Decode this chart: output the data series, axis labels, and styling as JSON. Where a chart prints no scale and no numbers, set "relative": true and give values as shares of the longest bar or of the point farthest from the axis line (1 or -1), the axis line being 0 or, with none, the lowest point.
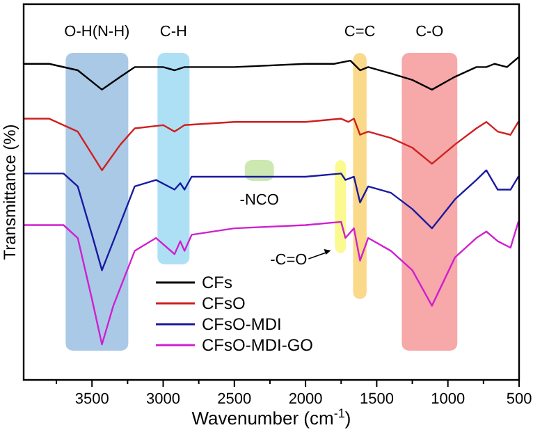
{
  "chart_data": {
    "type": "line",
    "relative": true,
    "xlabel": "Wavenumber (cm$^{-1}$)",
    "ylabel": "Transmittance (%)",
    "xlim": [
      3980,
      500
    ],
    "xticks": [
      {
        "value": 3750,
        "label": null
      },
      3500,
      {
        "value": 3250,
        "label": null
      },
      3000,
      {
        "value": 2750,
        "label": null
      },
      2500,
      {
        "value": 2250,
        "label": null
      },
      2000,
      {
        "value": 1750,
        "label": null
      },
      1500,
      {
        "value": 1250,
        "label": null
      },
      1000,
      {
        "value": 750,
        "label": null
      },
      500
    ],
    "tick_labels": "x",
    "legend": "bottom",
    "grid": false,
    "line_style": "solid",
    "series": [
      {
        "name": "CFs",
        "color": "#000000",
        "x": [
          3980,
          3800,
          3600,
          3430,
          3300,
          3200,
          3000,
          2920,
          2850,
          2500,
          2000,
          1800,
          1685,
          1617,
          1560,
          1400,
          1250,
          1112,
          950,
          800,
          730,
          673,
          585,
          505
        ],
        "values": [
          0.98,
          0.98,
          0.96,
          0.9,
          0.94,
          0.97,
          0.97,
          0.96,
          0.97,
          0.97,
          0.98,
          0.98,
          0.99,
          0.96,
          0.97,
          0.95,
          0.93,
          0.9,
          0.94,
          0.97,
          0.97,
          0.98,
          0.97,
          1.0
        ]
      },
      {
        "name": "CFsO",
        "color": "#d02020",
        "x": [
          3980,
          3800,
          3600,
          3430,
          3300,
          3200,
          3000,
          2920,
          2850,
          2500,
          2000,
          1750,
          1700,
          1660,
          1617,
          1560,
          1400,
          1250,
          1112,
          950,
          800,
          730,
          650,
          560,
          505
        ],
        "values": [
          0.81,
          0.81,
          0.77,
          0.65,
          0.73,
          0.78,
          0.79,
          0.77,
          0.79,
          0.8,
          0.8,
          0.81,
          0.8,
          0.81,
          0.76,
          0.77,
          0.75,
          0.72,
          0.67,
          0.73,
          0.78,
          0.8,
          0.77,
          0.76,
          0.8
        ]
      },
      {
        "name": "CFsO-MDI",
        "color": "#1a1aa0",
        "x": [
          3980,
          3700,
          3600,
          3500,
          3430,
          3350,
          3200,
          3050,
          2920,
          2880,
          2850,
          2800,
          2500,
          2300,
          2000,
          1750,
          1720,
          1660,
          1617,
          1560,
          1400,
          1250,
          1112,
          950,
          800,
          730,
          650,
          560,
          505
        ],
        "values": [
          0.64,
          0.64,
          0.6,
          0.45,
          0.34,
          0.43,
          0.6,
          0.62,
          0.59,
          0.61,
          0.59,
          0.63,
          0.63,
          0.63,
          0.63,
          0.64,
          0.62,
          0.63,
          0.55,
          0.6,
          0.58,
          0.53,
          0.47,
          0.56,
          0.62,
          0.65,
          0.59,
          0.59,
          0.63
        ]
      },
      {
        "name": "CFsO-MDI-GO",
        "color": "#d020d0",
        "x": [
          3980,
          3700,
          3600,
          3500,
          3430,
          3350,
          3200,
          3050,
          2920,
          2880,
          2850,
          2800,
          2500,
          2000,
          1750,
          1720,
          1660,
          1617,
          1560,
          1400,
          1250,
          1112,
          950,
          800,
          730,
          650,
          560,
          505
        ],
        "values": [
          0.48,
          0.48,
          0.44,
          0.25,
          0.11,
          0.23,
          0.4,
          0.44,
          0.39,
          0.43,
          0.4,
          0.45,
          0.47,
          0.48,
          0.49,
          0.44,
          0.47,
          0.37,
          0.44,
          0.4,
          0.34,
          0.23,
          0.38,
          0.44,
          0.46,
          0.43,
          0.41,
          0.49
        ]
      }
    ],
    "bands": [
      {
        "axis": "x",
        "from": 3685,
        "to": 3245,
        "label": "O-H(N-H)",
        "color": "#a9c9e6"
      },
      {
        "axis": "x",
        "from": 3040,
        "to": 2815,
        "label": "C-H",
        "color": "#aee0f5"
      },
      {
        "axis": "x",
        "from": 2427,
        "to": 2222,
        "label": "-NCO",
        "color": "#cde8b0"
      },
      {
        "axis": "x",
        "from": 1793,
        "to": 1715,
        "label": "-C=O",
        "color": "#fafa90"
      },
      {
        "axis": "x",
        "from": 1666,
        "to": 1571,
        "label": "C=C",
        "color": "#fad98a"
      },
      {
        "axis": "x",
        "from": 1324,
        "to": 934,
        "label": "C-O",
        "color": "#f7a8a8"
      }
    ]
  }
}
